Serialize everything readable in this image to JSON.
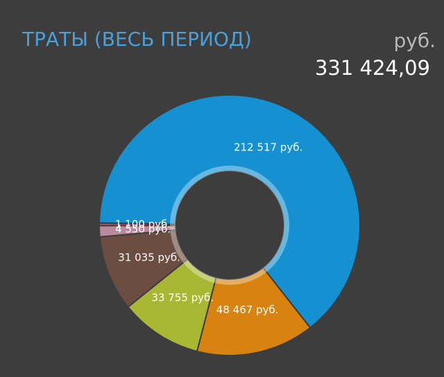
{
  "chart_data": {
    "type": "pie",
    "title": "ТРАТЫ (ВЕСЬ ПЕРИОД)",
    "unit": "руб.",
    "total": "331 424,09",
    "categories": [
      null,
      null,
      null,
      null,
      null,
      null
    ],
    "values": [
      212517,
      48467,
      33755,
      31035,
      4550,
      1100
    ],
    "value_labels": [
      "212 517 руб.",
      "48 467 руб.",
      "33 755 руб.",
      "31 035 руб.",
      "4 550 руб.",
      "1 100 руб."
    ],
    "colors": [
      "#1591d1",
      "#d8830f",
      "#a9b733",
      "#6c4d42",
      "#b98a9c",
      "#d43a7c"
    ]
  }
}
